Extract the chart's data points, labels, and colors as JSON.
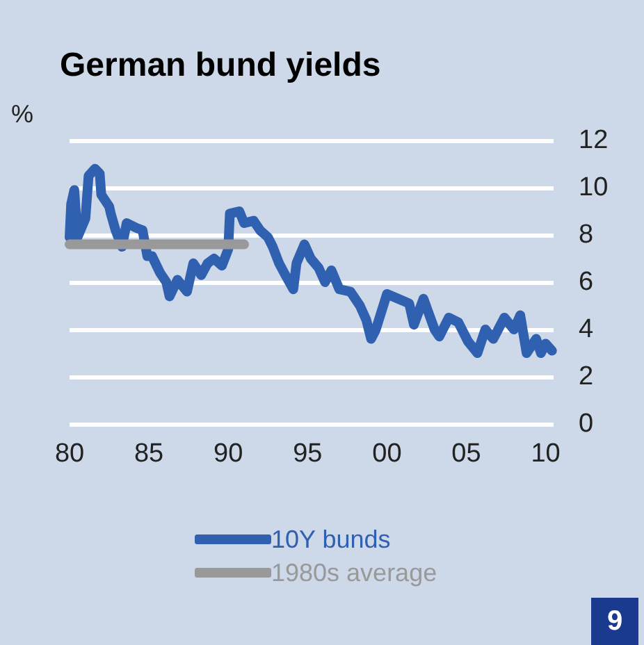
{
  "chart_data": {
    "type": "line",
    "title": "German bund yields",
    "ylabel": "%",
    "series": [
      {
        "name": "10Y bunds",
        "color": "#3060b0",
        "x": [
          1980.0,
          1980.1,
          1980.3,
          1980.5,
          1981.0,
          1981.2,
          1981.6,
          1981.9,
          1982.0,
          1982.5,
          1982.6,
          1982.9,
          1983.3,
          1983.6,
          1984.2,
          1984.6,
          1984.9,
          1985.2,
          1985.7,
          1986.1,
          1986.3,
          1986.8,
          1987.4,
          1987.8,
          1988.3,
          1988.7,
          1989.1,
          1989.6,
          1990.0,
          1990.1,
          1990.7,
          1991.0,
          1991.6,
          1992.0,
          1992.5,
          1992.8,
          1993.2,
          1993.6,
          1994.1,
          1994.3,
          1994.8,
          1995.2,
          1995.7,
          1996.1,
          1996.5,
          1997.0,
          1997.7,
          1998.3,
          1998.7,
          1999.0,
          1999.3,
          2000.0,
          2000.7,
          2001.4,
          2001.7,
          2002.3,
          2003.0,
          2003.3,
          2003.9,
          2004.5,
          2005.1,
          2005.7,
          2006.2,
          2006.7,
          2007.4,
          2008.0,
          2008.4,
          2008.8,
          2009.4,
          2009.7,
          2010.0,
          2010.4
        ],
        "values": [
          7.9,
          9.3,
          9.9,
          7.9,
          8.7,
          10.5,
          10.8,
          10.6,
          9.7,
          9.2,
          8.9,
          8.2,
          7.5,
          8.5,
          8.3,
          8.2,
          7.1,
          7.1,
          6.4,
          6.0,
          5.4,
          6.1,
          5.6,
          6.8,
          6.3,
          6.8,
          7.0,
          6.7,
          7.4,
          8.9,
          9.0,
          8.5,
          8.6,
          8.2,
          7.9,
          7.5,
          6.8,
          6.3,
          5.7,
          6.8,
          7.6,
          7.0,
          6.6,
          6.0,
          6.5,
          5.7,
          5.6,
          5.0,
          4.4,
          3.6,
          4.0,
          5.5,
          5.3,
          5.1,
          4.2,
          5.3,
          4.0,
          3.7,
          4.5,
          4.3,
          3.5,
          3.0,
          4.0,
          3.6,
          4.5,
          4.0,
          4.6,
          3.0,
          3.6,
          3.0,
          3.4,
          3.1
        ]
      },
      {
        "name": "1980s average",
        "color": "#999999",
        "x": [
          1980,
          1991
        ],
        "values": [
          7.6,
          7.6
        ]
      }
    ],
    "xlim": [
      1980,
      2010.5
    ],
    "xticks": [
      {
        "value": 1980,
        "label": "80"
      },
      {
        "value": 1985,
        "label": "85"
      },
      {
        "value": 1990,
        "label": "90"
      },
      {
        "value": 1995,
        "label": "95"
      },
      {
        "value": 2000,
        "label": "00"
      },
      {
        "value": 2005,
        "label": "05"
      },
      {
        "value": 2010,
        "label": "10"
      }
    ],
    "ylim": [
      0,
      12
    ],
    "yticks": [
      0,
      2,
      4,
      6,
      8,
      10,
      12
    ],
    "grid": "y",
    "legend": "bottom",
    "marker": "none",
    "line_style": "solid",
    "annotations": [
      "9"
    ]
  }
}
